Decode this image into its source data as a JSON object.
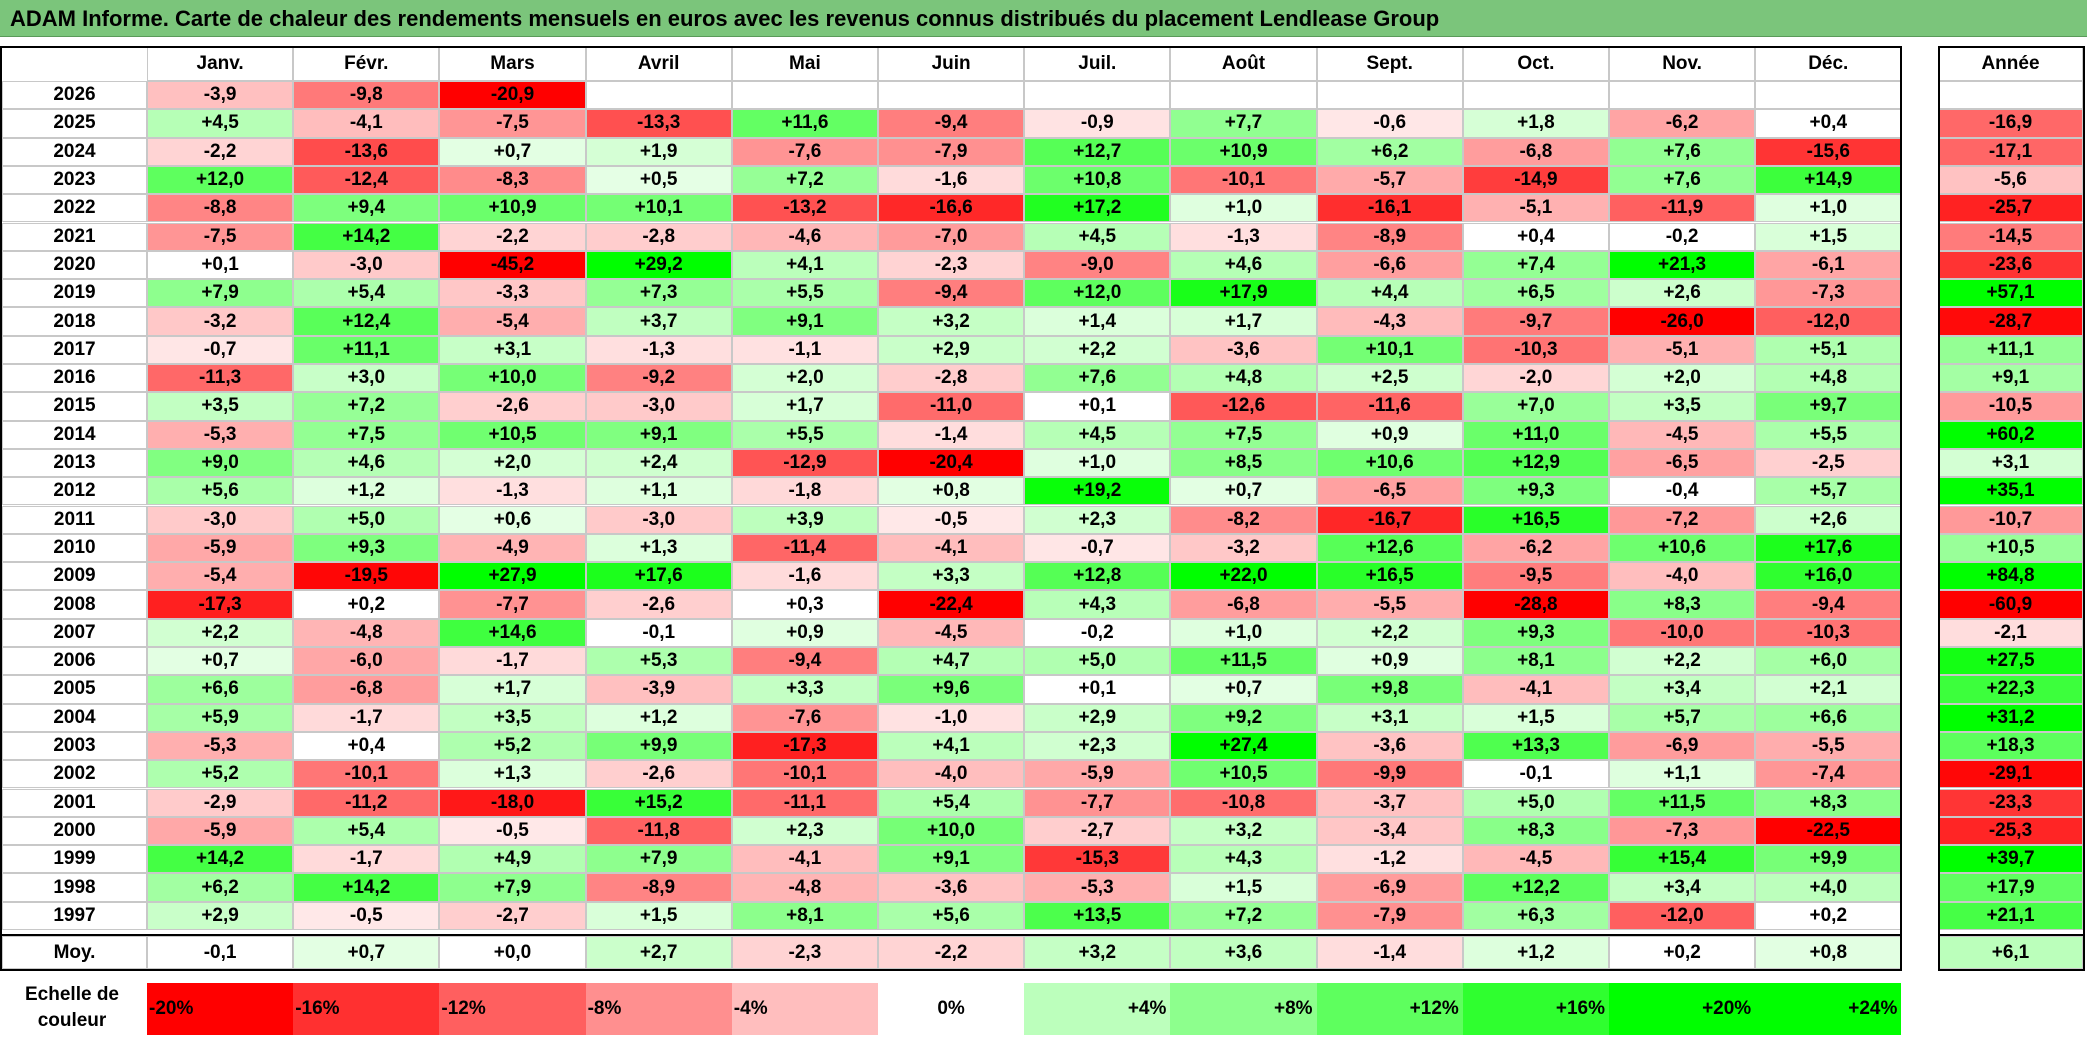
{
  "title": "ADAM Informe. Carte de chaleur des rendements mensuels en euros avec les revenus connus distribués du placement Lendlease Group",
  "months": [
    "Janv.",
    "Févr.",
    "Mars",
    "Avril",
    "Mai",
    "Juin",
    "Juil.",
    "Août",
    "Sept.",
    "Oct.",
    "Nov.",
    "Déc."
  ],
  "year_header": "Année",
  "avg_label": "Moy.",
  "legend_title_line1": "Echelle de",
  "legend_title_line2": "couleur",
  "chart_data": {
    "type": "heatmap",
    "title": "ADAM Informe. Carte de chaleur des rendements mensuels en euros avec les revenus connus distribués du placement Lendlease Group",
    "x": [
      "Janv.",
      "Févr.",
      "Mars",
      "Avril",
      "Mai",
      "Juin",
      "Juil.",
      "Août",
      "Sept.",
      "Oct.",
      "Nov.",
      "Déc."
    ],
    "rows": [
      {
        "year": "2026",
        "values": [
          "-3,9",
          "-9,8",
          "-20,9",
          "",
          "",
          "",
          "",
          "",
          "",
          "",
          "",
          ""
        ],
        "annual": ""
      },
      {
        "year": "2025",
        "values": [
          "+4,5",
          "-4,1",
          "-7,5",
          "-13,3",
          "+11,6",
          "-9,4",
          "-0,9",
          "+7,7",
          "-0,6",
          "+1,8",
          "-6,2",
          "+0,4"
        ],
        "annual": "-16,9"
      },
      {
        "year": "2024",
        "values": [
          "-2,2",
          "-13,6",
          "+0,7",
          "+1,9",
          "-7,6",
          "-7,9",
          "+12,7",
          "+10,9",
          "+6,2",
          "-6,8",
          "+7,6",
          "-15,6"
        ],
        "annual": "-17,1"
      },
      {
        "year": "2023",
        "values": [
          "+12,0",
          "-12,4",
          "-8,3",
          "+0,5",
          "+7,2",
          "-1,6",
          "+10,8",
          "-10,1",
          "-5,7",
          "-14,9",
          "+7,6",
          "+14,9"
        ],
        "annual": "-5,6"
      },
      {
        "year": "2022",
        "values": [
          "-8,8",
          "+9,4",
          "+10,9",
          "+10,1",
          "-13,2",
          "-16,6",
          "+17,2",
          "+1,0",
          "-16,1",
          "-5,1",
          "-11,9",
          "+1,0"
        ],
        "annual": "-25,7"
      },
      {
        "year": "2021",
        "values": [
          "-7,5",
          "+14,2",
          "-2,2",
          "-2,8",
          "-4,6",
          "-7,0",
          "+4,5",
          "-1,3",
          "-8,9",
          "+0,4",
          "-0,2",
          "+1,5"
        ],
        "annual": "-14,5"
      },
      {
        "year": "2020",
        "values": [
          "+0,1",
          "-3,0",
          "-45,2",
          "+29,2",
          "+4,1",
          "-2,3",
          "-9,0",
          "+4,6",
          "-6,6",
          "+7,4",
          "+21,3",
          "-6,1"
        ],
        "annual": "-23,6"
      },
      {
        "year": "2019",
        "values": [
          "+7,9",
          "+5,4",
          "-3,3",
          "+7,3",
          "+5,5",
          "-9,4",
          "+12,0",
          "+17,9",
          "+4,4",
          "+6,5",
          "+2,6",
          "-7,3"
        ],
        "annual": "+57,1"
      },
      {
        "year": "2018",
        "values": [
          "-3,2",
          "+12,4",
          "-5,4",
          "+3,7",
          "+9,1",
          "+3,2",
          "+1,4",
          "+1,7",
          "-4,3",
          "-9,7",
          "-26,0",
          "-12,0"
        ],
        "annual": "-28,7"
      },
      {
        "year": "2017",
        "values": [
          "-0,7",
          "+11,1",
          "+3,1",
          "-1,3",
          "-1,1",
          "+2,9",
          "+2,2",
          "-3,6",
          "+10,1",
          "-10,3",
          "-5,1",
          "+5,1"
        ],
        "annual": "+11,1"
      },
      {
        "year": "2016",
        "values": [
          "-11,3",
          "+3,0",
          "+10,0",
          "-9,2",
          "+2,0",
          "-2,8",
          "+7,6",
          "+4,8",
          "+2,5",
          "-2,0",
          "+2,0",
          "+4,8"
        ],
        "annual": "+9,1"
      },
      {
        "year": "2015",
        "values": [
          "+3,5",
          "+7,2",
          "-2,6",
          "-3,0",
          "+1,7",
          "-11,0",
          "+0,1",
          "-12,6",
          "-11,6",
          "+7,0",
          "+3,5",
          "+9,7"
        ],
        "annual": "-10,5"
      },
      {
        "year": "2014",
        "values": [
          "-5,3",
          "+7,5",
          "+10,5",
          "+9,1",
          "+5,5",
          "-1,4",
          "+4,5",
          "+7,5",
          "+0,9",
          "+11,0",
          "-4,5",
          "+5,5"
        ],
        "annual": "+60,2"
      },
      {
        "year": "2013",
        "values": [
          "+9,0",
          "+4,6",
          "+2,0",
          "+2,4",
          "-12,9",
          "-20,4",
          "+1,0",
          "+8,5",
          "+10,6",
          "+12,9",
          "-6,5",
          "-2,5"
        ],
        "annual": "+3,1"
      },
      {
        "year": "2012",
        "values": [
          "+5,6",
          "+1,2",
          "-1,3",
          "+1,1",
          "-1,8",
          "+0,8",
          "+19,2",
          "+0,7",
          "-6,5",
          "+9,3",
          "-0,4",
          "+5,7"
        ],
        "annual": "+35,1"
      },
      {
        "year": "2011",
        "values": [
          "-3,0",
          "+5,0",
          "+0,6",
          "-3,0",
          "+3,9",
          "-0,5",
          "+2,3",
          "-8,2",
          "-16,7",
          "+16,5",
          "-7,2",
          "+2,6"
        ],
        "annual": "-10,7"
      },
      {
        "year": "2010",
        "values": [
          "-5,9",
          "+9,3",
          "-4,9",
          "+1,3",
          "-11,4",
          "-4,1",
          "-0,7",
          "-3,2",
          "+12,6",
          "-6,2",
          "+10,6",
          "+17,6"
        ],
        "annual": "+10,5"
      },
      {
        "year": "2009",
        "values": [
          "-5,4",
          "-19,5",
          "+27,9",
          "+17,6",
          "-1,6",
          "+3,3",
          "+12,8",
          "+22,0",
          "+16,5",
          "-9,5",
          "-4,0",
          "+16,0"
        ],
        "annual": "+84,8"
      },
      {
        "year": "2008",
        "values": [
          "-17,3",
          "+0,2",
          "-7,7",
          "-2,6",
          "+0,3",
          "-22,4",
          "+4,3",
          "-6,8",
          "-5,5",
          "-28,8",
          "+8,3",
          "-9,4"
        ],
        "annual": "-60,9"
      },
      {
        "year": "2007",
        "values": [
          "+2,2",
          "-4,8",
          "+14,6",
          "-0,1",
          "+0,9",
          "-4,5",
          "-0,2",
          "+1,0",
          "+2,2",
          "+9,3",
          "-10,0",
          "-10,3"
        ],
        "annual": "-2,1"
      },
      {
        "year": "2006",
        "values": [
          "+0,7",
          "-6,0",
          "-1,7",
          "+5,3",
          "-9,4",
          "+4,7",
          "+5,0",
          "+11,5",
          "+0,9",
          "+8,1",
          "+2,2",
          "+6,0"
        ],
        "annual": "+27,5"
      },
      {
        "year": "2005",
        "values": [
          "+6,6",
          "-6,8",
          "+1,7",
          "-3,9",
          "+3,3",
          "+9,6",
          "+0,1",
          "+0,7",
          "+9,8",
          "-4,1",
          "+3,4",
          "+2,1"
        ],
        "annual": "+22,3"
      },
      {
        "year": "2004",
        "values": [
          "+5,9",
          "-1,7",
          "+3,5",
          "+1,2",
          "-7,6",
          "-1,0",
          "+2,9",
          "+9,2",
          "+3,1",
          "+1,5",
          "+5,7",
          "+6,6"
        ],
        "annual": "+31,2"
      },
      {
        "year": "2003",
        "values": [
          "-5,3",
          "+0,4",
          "+5,2",
          "+9,9",
          "-17,3",
          "+4,1",
          "+2,3",
          "+27,4",
          "-3,6",
          "+13,3",
          "-6,9",
          "-5,5"
        ],
        "annual": "+18,3"
      },
      {
        "year": "2002",
        "values": [
          "+5,2",
          "-10,1",
          "+1,3",
          "-2,6",
          "-10,1",
          "-4,0",
          "-5,9",
          "+10,5",
          "-9,9",
          "-0,1",
          "+1,1",
          "-7,4"
        ],
        "annual": "-29,1"
      },
      {
        "year": "2001",
        "values": [
          "-2,9",
          "-11,2",
          "-18,0",
          "+15,2",
          "-11,1",
          "+5,4",
          "-7,7",
          "-10,8",
          "-3,7",
          "+5,0",
          "+11,5",
          "+8,3"
        ],
        "annual": "-23,3"
      },
      {
        "year": "2000",
        "values": [
          "-5,9",
          "+5,4",
          "-0,5",
          "-11,8",
          "+2,3",
          "+10,0",
          "-2,7",
          "+3,2",
          "-3,4",
          "+8,3",
          "-7,3",
          "-22,5"
        ],
        "annual": "-25,3"
      },
      {
        "year": "1999",
        "values": [
          "+14,2",
          "-1,7",
          "+4,9",
          "+7,9",
          "-4,1",
          "+9,1",
          "-15,3",
          "+4,3",
          "-1,2",
          "-4,5",
          "+15,4",
          "+9,9"
        ],
        "annual": "+39,7"
      },
      {
        "year": "1998",
        "values": [
          "+6,2",
          "+14,2",
          "+7,9",
          "-8,9",
          "-4,8",
          "-3,6",
          "-5,3",
          "+1,5",
          "-6,9",
          "+12,2",
          "+3,4",
          "+4,0"
        ],
        "annual": "+17,9"
      },
      {
        "year": "1997",
        "values": [
          "+2,9",
          "-0,5",
          "-2,7",
          "+1,5",
          "+8,1",
          "+5,6",
          "+13,5",
          "+7,2",
          "-7,9",
          "+6,3",
          "-12,0",
          "+0,2"
        ],
        "annual": "+21,1"
      }
    ],
    "average": {
      "values": [
        "-0,1",
        "+0,7",
        "+0,0",
        "+2,7",
        "-2,3",
        "-2,2",
        "+3,2",
        "+3,6",
        "-1,4",
        "+1,2",
        "+0,2",
        "+0,8"
      ],
      "annual": "+6,1"
    },
    "legend": [
      "-20%",
      "-16%",
      "-12%",
      "-8%",
      "-4%",
      "0%",
      "+4%",
      "+8%",
      "+12%",
      "+16%",
      "+20%",
      "+24%"
    ],
    "legend_values": [
      -20,
      -16,
      -12,
      -8,
      -4,
      0,
      4,
      8,
      12,
      16,
      20,
      24
    ],
    "color_scale": {
      "negative_max": "#ff0000",
      "neutral": "#ffffff",
      "positive_max": "#00ff00"
    }
  }
}
